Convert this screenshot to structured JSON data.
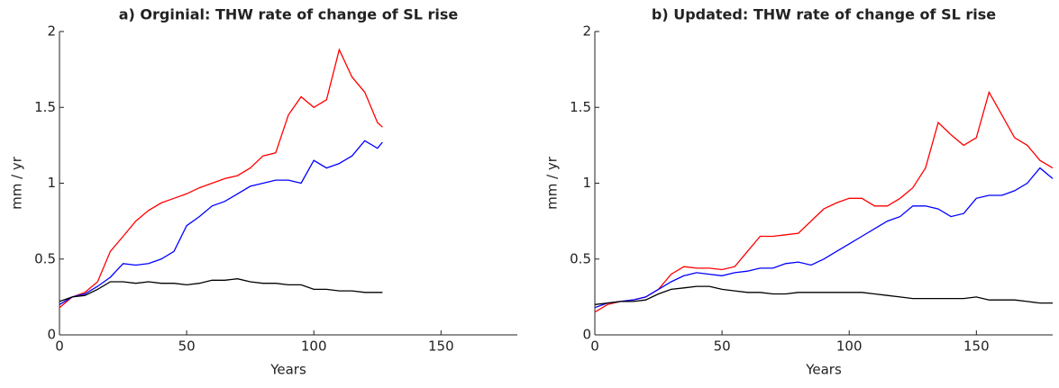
{
  "chart_data": [
    {
      "type": "line",
      "title": "a) Orginial: THW rate of change of SL rise",
      "x_label": "Years",
      "y_label": "mm / yr",
      "xlim": [
        0,
        180
      ],
      "xticks": [
        0,
        50,
        100,
        150
      ],
      "ylim": [
        0,
        2
      ],
      "yticks": [
        0,
        0.5,
        1,
        1.5,
        2
      ],
      "x": [
        0,
        5,
        10,
        15,
        20,
        25,
        30,
        35,
        40,
        45,
        50,
        55,
        60,
        65,
        70,
        75,
        80,
        85,
        90,
        95,
        100,
        105,
        110,
        115,
        120,
        125,
        127
      ],
      "series": [
        {
          "color": "#ff0000",
          "values": [
            0.18,
            0.25,
            0.28,
            0.35,
            0.55,
            0.65,
            0.75,
            0.82,
            0.87,
            0.9,
            0.93,
            0.97,
            1.0,
            1.03,
            1.05,
            1.1,
            1.18,
            1.2,
            1.45,
            1.57,
            1.5,
            1.55,
            1.88,
            1.7,
            1.6,
            1.4,
            1.37
          ]
        },
        {
          "color": "#0000ff",
          "values": [
            0.2,
            0.25,
            0.27,
            0.32,
            0.38,
            0.47,
            0.46,
            0.47,
            0.5,
            0.55,
            0.72,
            0.78,
            0.85,
            0.88,
            0.93,
            0.98,
            1.0,
            1.02,
            1.02,
            1.0,
            1.15,
            1.1,
            1.13,
            1.18,
            1.28,
            1.23,
            1.27
          ]
        },
        {
          "color": "#000000",
          "values": [
            0.22,
            0.25,
            0.26,
            0.3,
            0.35,
            0.35,
            0.34,
            0.35,
            0.34,
            0.34,
            0.33,
            0.34,
            0.36,
            0.36,
            0.37,
            0.35,
            0.34,
            0.34,
            0.33,
            0.33,
            0.3,
            0.3,
            0.29,
            0.29,
            0.28,
            0.28,
            0.28
          ]
        }
      ]
    },
    {
      "type": "line",
      "title": "b) Updated: THW rate of change of SL rise",
      "x_label": "Years",
      "y_label": "mm / yr",
      "xlim": [
        0,
        180
      ],
      "xticks": [
        0,
        50,
        100,
        150
      ],
      "ylim": [
        0,
        2
      ],
      "yticks": [
        0,
        0.5,
        1,
        1.5,
        2
      ],
      "x": [
        0,
        5,
        10,
        15,
        20,
        25,
        30,
        35,
        40,
        45,
        50,
        55,
        60,
        65,
        70,
        75,
        80,
        85,
        90,
        95,
        100,
        105,
        110,
        115,
        120,
        125,
        130,
        135,
        140,
        145,
        150,
        155,
        160,
        165,
        170,
        175,
        180
      ],
      "series": [
        {
          "color": "#ff0000",
          "values": [
            0.15,
            0.2,
            0.22,
            0.23,
            0.25,
            0.3,
            0.4,
            0.45,
            0.44,
            0.44,
            0.43,
            0.45,
            0.55,
            0.65,
            0.65,
            0.66,
            0.67,
            0.75,
            0.83,
            0.87,
            0.9,
            0.9,
            0.85,
            0.85,
            0.9,
            0.97,
            1.1,
            1.4,
            1.32,
            1.25,
            1.3,
            1.6,
            1.45,
            1.3,
            1.25,
            1.15,
            1.1
          ]
        },
        {
          "color": "#0000ff",
          "values": [
            0.18,
            0.21,
            0.22,
            0.23,
            0.25,
            0.3,
            0.35,
            0.39,
            0.41,
            0.4,
            0.39,
            0.41,
            0.42,
            0.44,
            0.44,
            0.47,
            0.48,
            0.46,
            0.5,
            0.55,
            0.6,
            0.65,
            0.7,
            0.75,
            0.78,
            0.85,
            0.85,
            0.83,
            0.78,
            0.8,
            0.9,
            0.92,
            0.92,
            0.95,
            1.0,
            1.1,
            1.03
          ]
        },
        {
          "color": "#000000",
          "values": [
            0.2,
            0.21,
            0.22,
            0.22,
            0.23,
            0.27,
            0.3,
            0.31,
            0.32,
            0.32,
            0.3,
            0.29,
            0.28,
            0.28,
            0.27,
            0.27,
            0.28,
            0.28,
            0.28,
            0.28,
            0.28,
            0.28,
            0.27,
            0.26,
            0.25,
            0.24,
            0.24,
            0.24,
            0.24,
            0.24,
            0.25,
            0.23,
            0.23,
            0.23,
            0.22,
            0.21,
            0.21
          ]
        }
      ]
    }
  ]
}
